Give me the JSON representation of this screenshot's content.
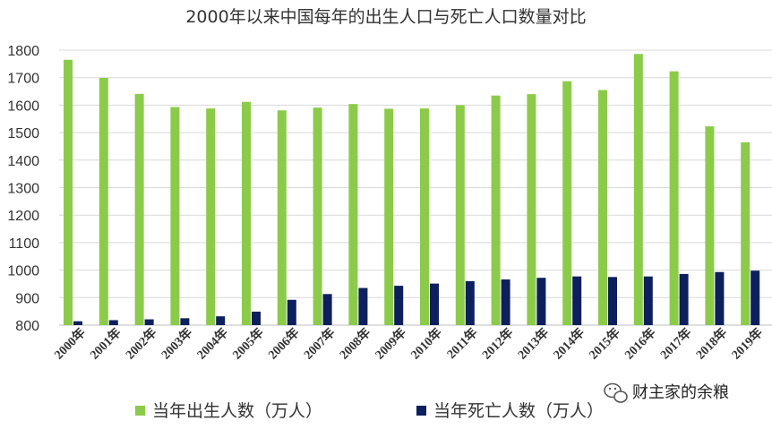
{
  "watermark": {
    "text": "财主家的余粮",
    "icon": "wechat-icon"
  },
  "colors": {
    "births": "#8CCB4A",
    "deaths": "#0D1F5C",
    "grid": "#D9D9D9",
    "axis": "#BFBFBF"
  },
  "chart_data": {
    "type": "bar",
    "title": "2000年以来中国每年的出生人口与死亡人口数量对比",
    "xlabel": "",
    "ylabel": "",
    "ylim": [
      800,
      1800
    ],
    "yticks": [
      800,
      900,
      1000,
      1100,
      1200,
      1300,
      1400,
      1500,
      1600,
      1700,
      1800
    ],
    "grid": true,
    "legend_position": "bottom",
    "categories": [
      "2000年",
      "2001年",
      "2002年",
      "2003年",
      "2004年",
      "2005年",
      "2006年",
      "2007年",
      "2008年",
      "2009年",
      "2010年",
      "2011年",
      "2012年",
      "2013年",
      "2014年",
      "2015年",
      "2016年",
      "2017年",
      "2018年",
      "2019年"
    ],
    "series": [
      {
        "name": "当年出生人数（万人）",
        "values": [
          1765,
          1699,
          1641,
          1593,
          1588,
          1612,
          1581,
          1591,
          1604,
          1587,
          1588,
          1600,
          1635,
          1640,
          1687,
          1655,
          1786,
          1723,
          1523,
          1465
        ]
      },
      {
        "name": "当年死亡人数（万人）",
        "values": [
          814,
          818,
          821,
          825,
          832,
          849,
          892,
          913,
          935,
          943,
          951,
          960,
          966,
          972,
          977,
          975,
          977,
          986,
          993,
          998
        ]
      }
    ]
  }
}
